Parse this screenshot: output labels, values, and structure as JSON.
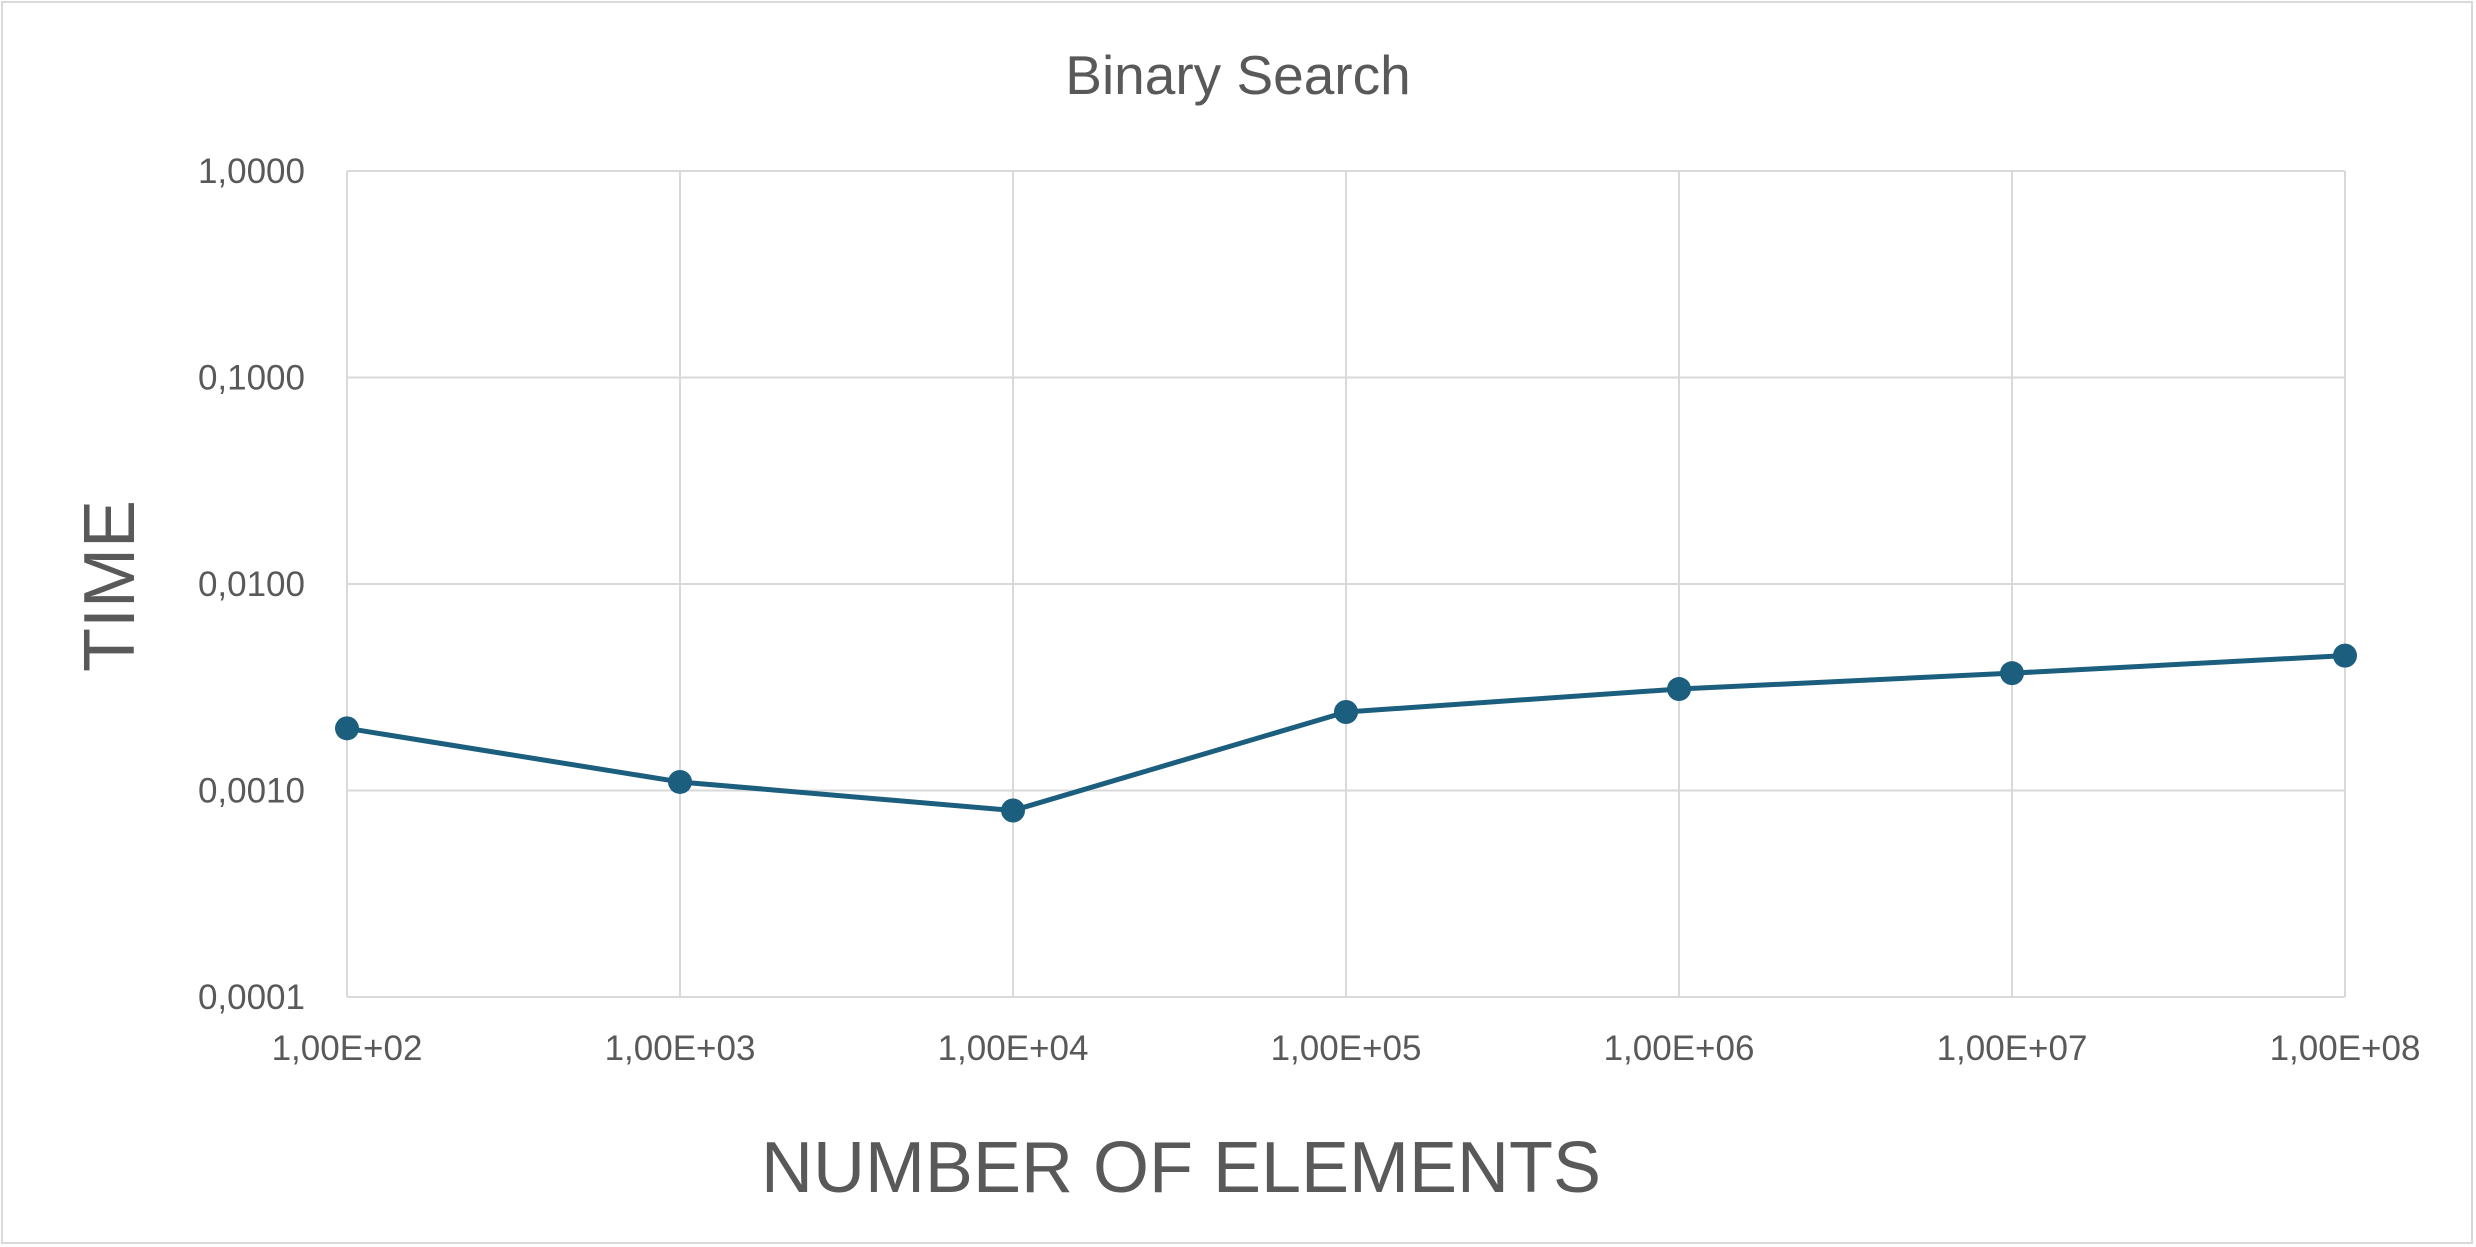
{
  "chart_data": {
    "type": "line",
    "title": "Binary Search",
    "xlabel": "NUMBER OF ELEMENTS",
    "ylabel": "TIME",
    "x_scale": "log",
    "y_scale": "log",
    "x": [
      100,
      1000,
      10000,
      100000,
      1000000,
      10000000,
      100000000
    ],
    "x_tick_labels": [
      "1,00E+02",
      "1,00E+03",
      "1,00E+04",
      "1,00E+05",
      "1,00E+06",
      "1,00E+07",
      "1,00E+08"
    ],
    "y_tick_values": [
      0.0001,
      0.001,
      0.01,
      0.1,
      1
    ],
    "y_tick_labels": [
      "0,0001",
      "0,0010",
      "0,0100",
      "0,1000",
      "1,0000"
    ],
    "xlim": [
      100,
      100000000
    ],
    "ylim": [
      0.0001,
      1
    ],
    "grid": true,
    "legend": "none",
    "series": [
      {
        "color": "#1b5e7e",
        "marker": "circle",
        "values": [
          0.002,
          0.0011,
          0.0008,
          0.0024,
          0.0031,
          0.0037,
          0.0045
        ]
      }
    ]
  }
}
